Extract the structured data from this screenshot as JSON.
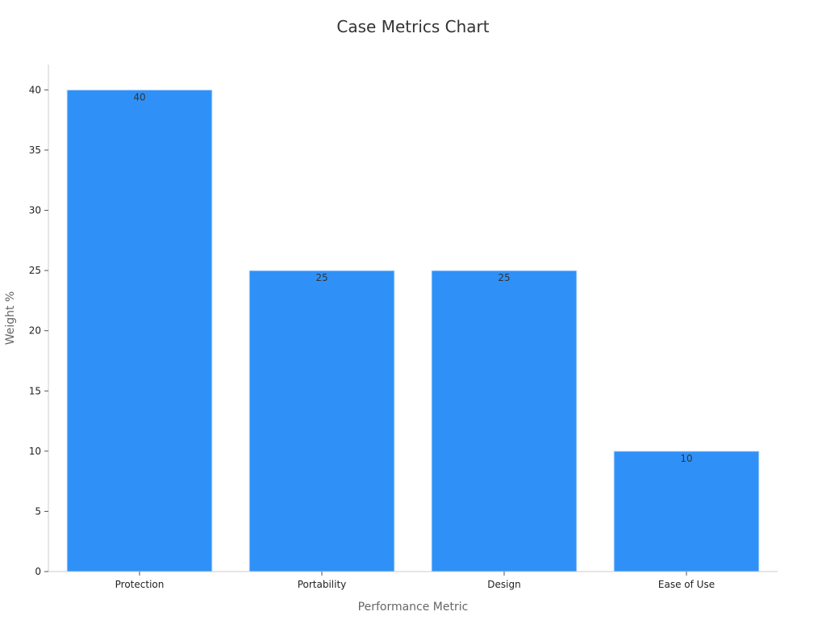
{
  "chart_data": {
    "type": "bar",
    "title": "Case Metrics Chart",
    "xlabel": "Performance Metric",
    "ylabel": "Weight %",
    "categories": [
      "Protection",
      "Portability",
      "Design",
      "Ease of Use"
    ],
    "values": [
      40,
      25,
      25,
      10
    ],
    "ylim": [
      0,
      42
    ],
    "yticks": [
      0,
      5,
      10,
      15,
      20,
      25,
      30,
      35,
      40
    ],
    "data_labels": [
      "40",
      "25",
      "25",
      "10"
    ],
    "grid": false,
    "legend": "none",
    "bar_color": "#2f91f7"
  }
}
